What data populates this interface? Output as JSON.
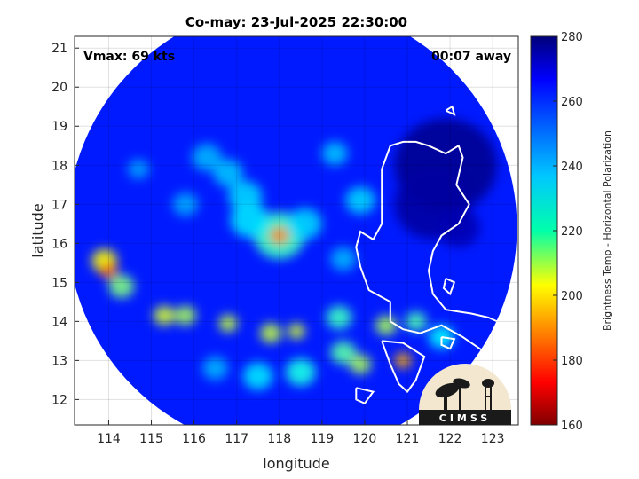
{
  "chart_data": {
    "type": "heatmap",
    "title": "Co-may: 23-Jul-2025 22:30:00",
    "xlabel": "longitude",
    "ylabel": "latitude",
    "xlim": [
      113.2,
      123.6
    ],
    "ylim": [
      11.35,
      21.3
    ],
    "x_ticks": [
      "114",
      "115",
      "116",
      "117",
      "118",
      "119",
      "120",
      "121",
      "122",
      "123"
    ],
    "y_ticks": [
      "12",
      "13",
      "14",
      "15",
      "16",
      "17",
      "18",
      "19",
      "20",
      "21"
    ],
    "grid": true,
    "annotations": {
      "vmax": "Vmax: 69 kts",
      "time_offset": "00:07 away"
    },
    "colorbar": {
      "label": "Brightness Temp - Horizontal Polarization",
      "range": [
        160,
        280
      ],
      "ticks": [
        "160",
        "180",
        "200",
        "220",
        "240",
        "260",
        "280"
      ],
      "colormap": "jet"
    },
    "swath": {
      "center": [
        118.3,
        16.4
      ],
      "radius_deg": 5.5
    },
    "background_temp": 262,
    "features": [
      {
        "lon": 118.0,
        "lat": 16.2,
        "temp": 190,
        "r": 0.22
      },
      {
        "lon": 118.0,
        "lat": 16.2,
        "temp": 228,
        "r": 0.6
      },
      {
        "lon": 117.3,
        "lat": 16.6,
        "temp": 238,
        "r": 0.45
      },
      {
        "lon": 118.6,
        "lat": 16.5,
        "temp": 240,
        "r": 0.4
      },
      {
        "lon": 117.2,
        "lat": 17.2,
        "temp": 240,
        "r": 0.4
      },
      {
        "lon": 116.8,
        "lat": 17.8,
        "temp": 242,
        "r": 0.35
      },
      {
        "lon": 116.3,
        "lat": 18.2,
        "temp": 244,
        "r": 0.35
      },
      {
        "lon": 115.8,
        "lat": 17.0,
        "temp": 245,
        "r": 0.3
      },
      {
        "lon": 114.7,
        "lat": 17.9,
        "temp": 246,
        "r": 0.25
      },
      {
        "lon": 119.3,
        "lat": 18.3,
        "temp": 242,
        "r": 0.3
      },
      {
        "lon": 119.9,
        "lat": 17.1,
        "temp": 240,
        "r": 0.35
      },
      {
        "lon": 119.5,
        "lat": 15.6,
        "temp": 244,
        "r": 0.3
      },
      {
        "lon": 114.0,
        "lat": 15.3,
        "temp": 186,
        "r": 0.2
      },
      {
        "lon": 113.9,
        "lat": 15.55,
        "temp": 205,
        "r": 0.3
      },
      {
        "lon": 114.3,
        "lat": 14.9,
        "temp": 220,
        "r": 0.3
      },
      {
        "lon": 115.3,
        "lat": 14.15,
        "temp": 210,
        "r": 0.25
      },
      {
        "lon": 115.8,
        "lat": 14.15,
        "temp": 215,
        "r": 0.25
      },
      {
        "lon": 116.8,
        "lat": 13.95,
        "temp": 212,
        "r": 0.22
      },
      {
        "lon": 117.8,
        "lat": 13.7,
        "temp": 212,
        "r": 0.25
      },
      {
        "lon": 118.4,
        "lat": 13.75,
        "temp": 210,
        "r": 0.2
      },
      {
        "lon": 119.4,
        "lat": 14.1,
        "temp": 228,
        "r": 0.3
      },
      {
        "lon": 120.5,
        "lat": 13.9,
        "temp": 215,
        "r": 0.25
      },
      {
        "lon": 120.9,
        "lat": 13.0,
        "temp": 195,
        "r": 0.2
      },
      {
        "lon": 119.9,
        "lat": 12.9,
        "temp": 215,
        "r": 0.25
      },
      {
        "lon": 119.5,
        "lat": 13.2,
        "temp": 225,
        "r": 0.3
      },
      {
        "lon": 118.5,
        "lat": 12.7,
        "temp": 232,
        "r": 0.35
      },
      {
        "lon": 117.5,
        "lat": 12.6,
        "temp": 238,
        "r": 0.35
      },
      {
        "lon": 116.5,
        "lat": 12.8,
        "temp": 244,
        "r": 0.3
      },
      {
        "lon": 121.8,
        "lat": 13.6,
        "temp": 236,
        "r": 0.3
      },
      {
        "lon": 121.2,
        "lat": 14.0,
        "temp": 226,
        "r": 0.25
      },
      {
        "lon": 121.9,
        "lat": 18.0,
        "temp": 278,
        "r": 1.2
      },
      {
        "lon": 121.6,
        "lat": 17.0,
        "temp": 276,
        "r": 0.9
      },
      {
        "lon": 122.2,
        "lat": 16.4,
        "temp": 274,
        "r": 0.5
      }
    ]
  },
  "logo": {
    "text": "CIMSS"
  }
}
